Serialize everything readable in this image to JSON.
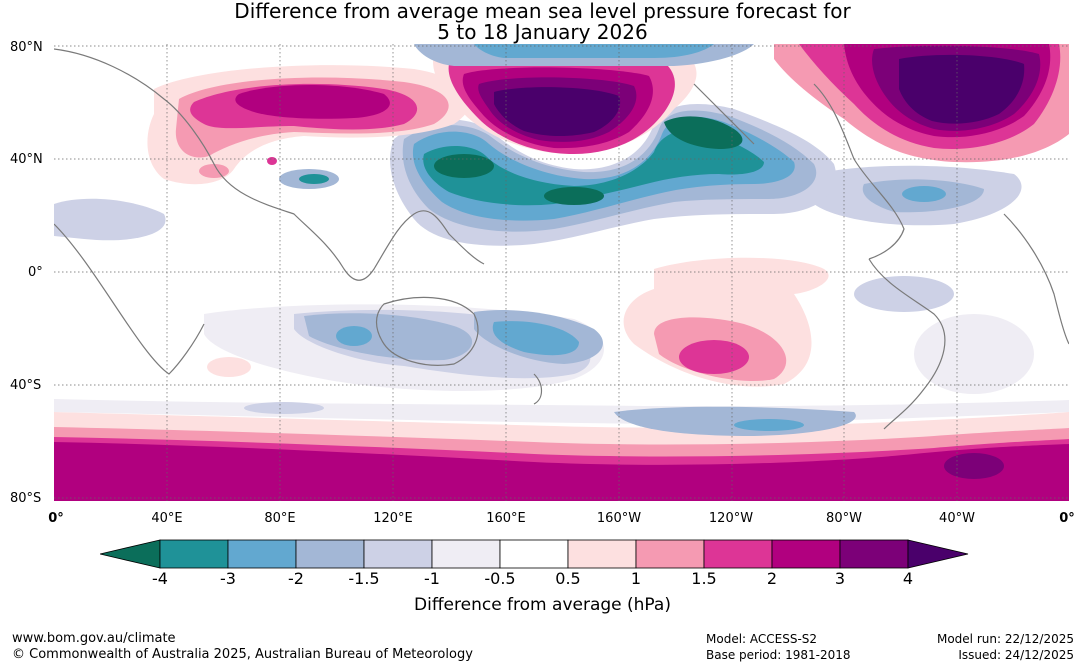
{
  "title": {
    "line1": "Difference from average mean sea level pressure forecast for",
    "line2": "5 to 18 January 2026"
  },
  "axes": {
    "lat_labels": [
      "80°N",
      "40°N",
      "0°",
      "40°S",
      "80°S"
    ],
    "lon_labels": [
      "0°",
      "40°E",
      "80°E",
      "120°E",
      "160°E",
      "160°W",
      "120°W",
      "80°W",
      "40°W",
      "0°"
    ]
  },
  "colorbar": {
    "ticks": [
      "-4",
      "-3",
      "-2",
      "-1.5",
      "-1",
      "-0.5",
      "0.5",
      "1",
      "1.5",
      "2",
      "3",
      "4"
    ],
    "colors": [
      "#0b6e5a",
      "#1f9298",
      "#62a8d0",
      "#a3b7d6",
      "#cdd1e6",
      "#efedf4",
      "#ffffff",
      "#fde0e0",
      "#f59ab2",
      "#dd3596",
      "#b1007f",
      "#7c0078",
      "#4a006b"
    ],
    "label": "Difference from average (hPa)"
  },
  "footer": {
    "url": "www.bom.gov.au/climate",
    "copyright": "© Commonwealth of Australia 2025, Australian Bureau of Meteorology",
    "model": "Model: ACCESS-S2",
    "base_period": "Base period: 1981-2018",
    "model_run": "Model run: 22/12/2025",
    "issued": "Issued: 24/12/2025"
  }
}
